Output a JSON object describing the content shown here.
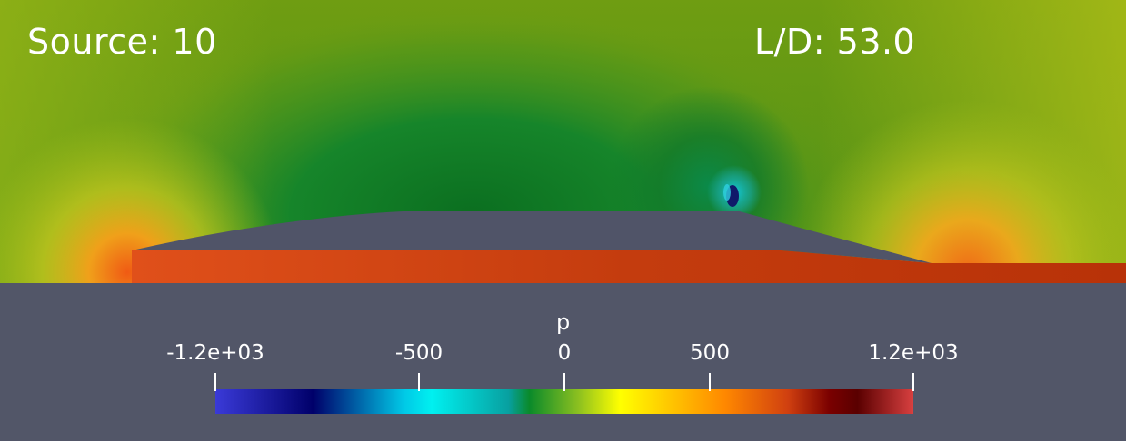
{
  "annotations": {
    "source": "Source: 10",
    "lift_drag": "L/D: 53.0"
  },
  "colorbar": {
    "title": "p",
    "range": [
      -1200,
      1200
    ],
    "ticks": [
      {
        "value": -1200,
        "label": "-1.2e+03"
      },
      {
        "value": -500,
        "label": "-500"
      },
      {
        "value": 0,
        "label": "0"
      },
      {
        "value": 500,
        "label": "500"
      },
      {
        "value": 1200,
        "label": "1.2e+03"
      }
    ],
    "colormap": [
      "#3b3bd6",
      "#00007a",
      "#00ffff",
      "#1a9e3a",
      "#ffff00",
      "#ff8000",
      "#b01e05",
      "#5a0000",
      "#d43a3a"
    ]
  },
  "colors": {
    "background_panel": "#525668",
    "body_fill": "#505468",
    "far_field": "#7aa312",
    "low_pressure": "#0a7a1e",
    "stagnation": "#e58a14",
    "underside": "#c23a0c"
  }
}
